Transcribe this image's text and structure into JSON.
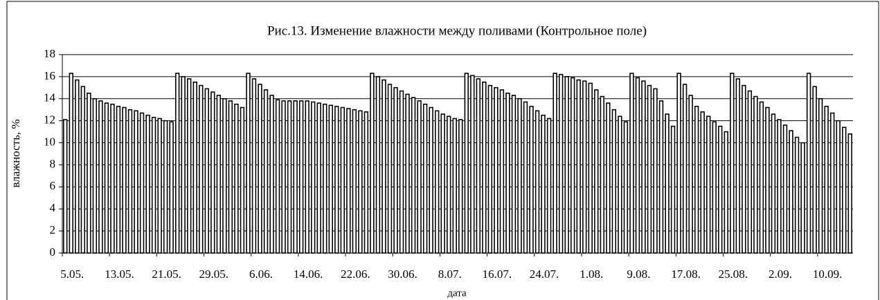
{
  "chart_data": {
    "type": "bar",
    "title": "Рис.13. Изменение влажности между поливами (Контрольное поле)",
    "y_label": "влажность, %",
    "x_label": "дата",
    "categories": [
      "5.05.",
      null,
      null,
      null,
      null,
      null,
      null,
      null,
      "13.05.",
      null,
      null,
      null,
      null,
      null,
      null,
      null,
      "21.05.",
      null,
      null,
      null,
      null,
      null,
      null,
      null,
      "29.05.",
      null,
      null,
      null,
      null,
      null,
      null,
      null,
      "6.06.",
      null,
      null,
      null,
      null,
      null,
      null,
      null,
      "14.06.",
      null,
      null,
      null,
      null,
      null,
      null,
      null,
      "22.06.",
      null,
      null,
      null,
      null,
      null,
      null,
      null,
      "30.06.",
      null,
      null,
      null,
      null,
      null,
      null,
      null,
      "8.07.",
      null,
      null,
      null,
      null,
      null,
      null,
      null,
      "16.07.",
      null,
      null,
      null,
      null,
      null,
      null,
      null,
      "24.07.",
      null,
      null,
      null,
      null,
      null,
      null,
      null,
      "1.08.",
      null,
      null,
      null,
      null,
      null,
      null,
      null,
      "9.08.",
      null,
      null,
      null,
      null,
      null,
      null,
      null,
      "17.08.",
      null,
      null,
      null,
      null,
      null,
      null,
      null,
      "25.08.",
      null,
      null,
      null,
      null,
      null,
      null,
      null,
      "2.09.",
      null,
      null,
      null,
      null,
      null,
      null,
      null,
      "10.09.",
      null,
      null,
      null,
      null,
      null
    ],
    "values": [
      12.1,
      16.3,
      15.7,
      15.1,
      14.5,
      14.0,
      13.8,
      13.6,
      13.5,
      13.3,
      13.2,
      13.0,
      12.9,
      12.7,
      12.5,
      12.3,
      12.2,
      12.0,
      11.9,
      16.3,
      16.0,
      15.8,
      15.5,
      15.2,
      14.9,
      14.6,
      14.3,
      14.0,
      13.8,
      13.5,
      13.2,
      16.3,
      15.8,
      15.3,
      14.8,
      14.3,
      13.9,
      13.8,
      13.8,
      13.8,
      13.8,
      13.8,
      13.7,
      13.6,
      13.5,
      13.4,
      13.3,
      13.2,
      13.1,
      13.0,
      12.9,
      12.8,
      16.3,
      16.0,
      15.7,
      15.3,
      15.0,
      14.7,
      14.4,
      14.1,
      13.8,
      13.5,
      13.2,
      12.9,
      12.6,
      12.4,
      12.2,
      12.1,
      16.3,
      16.1,
      15.8,
      15.5,
      15.2,
      15.0,
      14.8,
      14.5,
      14.3,
      14.0,
      13.7,
      13.3,
      12.9,
      12.5,
      12.2,
      16.3,
      16.2,
      16.0,
      15.9,
      15.7,
      15.6,
      15.4,
      14.8,
      14.2,
      13.6,
      13.0,
      12.4,
      11.9,
      16.3,
      15.9,
      15.6,
      15.2,
      14.9,
      13.8,
      12.6,
      11.5,
      16.3,
      15.3,
      14.3,
      13.3,
      12.8,
      12.4,
      11.9,
      11.5,
      11.0,
      16.3,
      15.8,
      15.2,
      14.7,
      14.2,
      13.7,
      13.2,
      12.6,
      12.1,
      11.6,
      11.1,
      10.5,
      10.0,
      16.3,
      15.1,
      14.0,
      13.3,
      12.7,
      12.0,
      11.4,
      10.8
    ],
    "color": "#ffffff",
    "edgecolor": "#000000",
    "ylim": [
      0,
      18
    ],
    "yticks": [
      0,
      2,
      4,
      6,
      8,
      10,
      12,
      14,
      16,
      18
    ],
    "grid": true
  }
}
